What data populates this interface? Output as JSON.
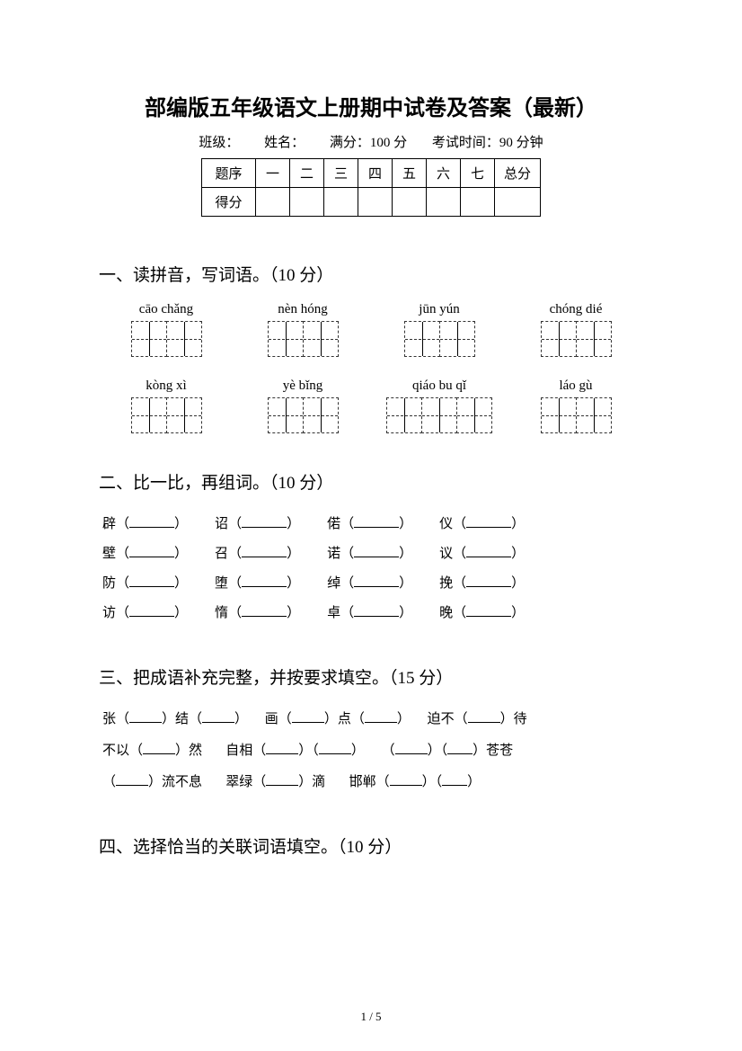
{
  "title": "部编版五年级语文上册期中试卷及答案（最新）",
  "info": {
    "class_label": "班级：",
    "name_label": "姓名：",
    "full_label": "满分：100 分",
    "time_label": "考试时间：90 分钟"
  },
  "score_table": {
    "row1": [
      "题序",
      "一",
      "二",
      "三",
      "四",
      "五",
      "六",
      "七",
      "总分"
    ],
    "row2_label": "得分"
  },
  "section1": {
    "heading": "一、读拼音，写词语。（10 分）",
    "pinyin_row1": [
      "cāo chǎng",
      "nèn hóng",
      "jūn yún",
      "chóng dié"
    ],
    "pinyin_row2": [
      "kòng xì",
      "yè   bǐng",
      "qiáo bu qǐ",
      "láo   gù"
    ]
  },
  "section2": {
    "heading": "二、比一比，再组词。（10 分）",
    "rows": [
      [
        "辟",
        "诏",
        "偌",
        "仪"
      ],
      [
        "壁",
        "召",
        "诺",
        "议"
      ],
      [
        "防",
        "堕",
        "绰",
        "挽"
      ],
      [
        "访",
        "惰",
        "卓",
        "晚"
      ]
    ]
  },
  "section3": {
    "heading": "三、把成语补充完整，并按要求填空。（15 分）",
    "lines": {
      "l1a": "张（",
      "l1b": "）结（",
      "l1c": "）",
      "l1d": "画（",
      "l1e": "）点（",
      "l1f": "）",
      "l1g": "迫不（",
      "l1h": "）待",
      "l2a": "不以（",
      "l2b": "）然",
      "l2c": "自相（",
      "l2d": "）（",
      "l2e": "）",
      "l2f": "（",
      "l2g": "）（",
      "l2h": "）苍苍",
      "l3a": "（",
      "l3b": "）流不息",
      "l3c": "翠绿（",
      "l3d": "）滴",
      "l3e": "邯郸（",
      "l3f": "）（",
      "l3g": "）"
    }
  },
  "section4": {
    "heading": "四、选择恰当的关联词语填空。（10 分）"
  },
  "page_number": "1 / 5"
}
